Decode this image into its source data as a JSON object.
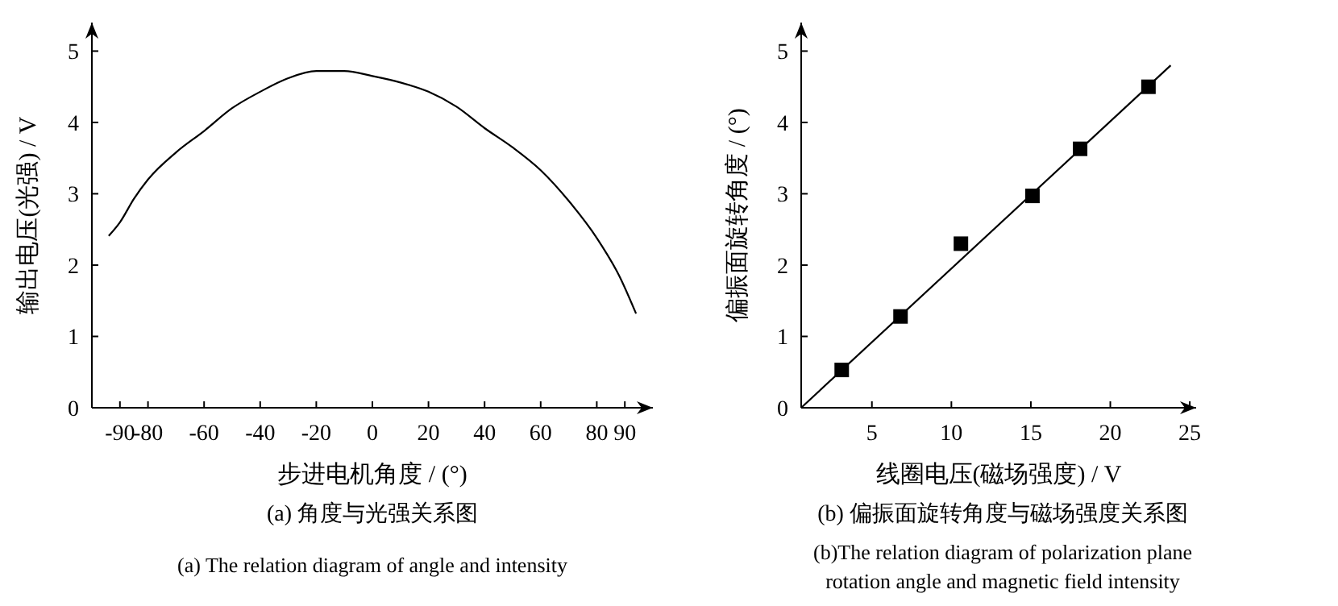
{
  "chart_data": [
    {
      "type": "line",
      "title": "(a) 角度与光强关系图",
      "subtitle": "(a) The relation diagram of angle and intensity",
      "xlabel": "步进电机角度 / (°)",
      "ylabel": "输出电压(光强) / V",
      "xlim": [
        -100,
        100
      ],
      "ylim": [
        0,
        5.4
      ],
      "xticks": [
        -90,
        -80,
        -60,
        -40,
        -20,
        0,
        20,
        40,
        60,
        80,
        90
      ],
      "yticks": [
        0,
        1,
        2,
        3,
        4,
        5
      ],
      "series": [
        {
          "color": "#000000",
          "x": [
            -94,
            -90,
            -85,
            -80,
            -70,
            -60,
            -50,
            -40,
            -30,
            -20,
            -10,
            0,
            10,
            20,
            30,
            40,
            50,
            60,
            70,
            80,
            88,
            94
          ],
          "values": [
            2.41,
            2.6,
            2.93,
            3.2,
            3.58,
            3.88,
            4.2,
            4.43,
            4.62,
            4.72,
            4.72,
            4.65,
            4.56,
            4.43,
            4.22,
            3.92,
            3.65,
            3.33,
            2.9,
            2.38,
            1.85,
            1.32
          ]
        }
      ]
    },
    {
      "type": "scatter",
      "title": "(b) 偏振面旋转角度与磁场强度关系图",
      "subtitle": "(b)The relation diagram of polarization plane rotation angle and magnetic field intensity",
      "xlabel": "线圈电压(磁场强度) / V",
      "ylabel": "偏振面旋转角度 / (°)",
      "xlim": [
        0.55,
        25.4
      ],
      "ylim": [
        0,
        5.4
      ],
      "xticks": [
        5,
        10,
        15,
        20,
        25
      ],
      "yticks": [
        0,
        1,
        2,
        3,
        4,
        5
      ],
      "series": [
        {
          "color": "#000000",
          "marker": "square",
          "x": [
            3.1,
            6.8,
            10.6,
            15.1,
            18.1,
            22.4
          ],
          "values": [
            0.53,
            1.28,
            2.3,
            2.97,
            3.63,
            4.5
          ]
        },
        {
          "type": "line",
          "color": "#000000",
          "x": [
            0.55,
            23.8
          ],
          "values": [
            0,
            4.8
          ]
        }
      ]
    }
  ]
}
